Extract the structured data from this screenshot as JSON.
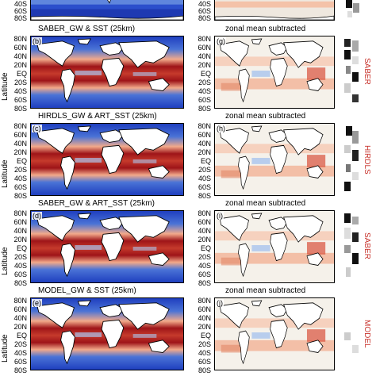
{
  "y_axis_label": "Latitude",
  "lat_labels_full": [
    "80N",
    "60N",
    "40N",
    "20N",
    "EQ",
    "20S",
    "40S",
    "60S",
    "80S"
  ],
  "lat_labels_top": [
    "40S",
    "60S",
    "80S"
  ],
  "right_column_title": "zonal mean subtracted",
  "rows": [
    {
      "left_title": "SABER_GW & SST (25km)",
      "left_panel": "(b)",
      "right_panel": "(g)",
      "side_label": "SABER"
    },
    {
      "left_title": "HIRDLS_GW & ART_SST (25km)",
      "left_panel": "(c)",
      "right_panel": "(h)",
      "side_label": "HIRDLS"
    },
    {
      "left_title": "SABER_GW & ART_SST (25km)",
      "left_panel": "(d)",
      "right_panel": "(i)",
      "side_label": "SABER"
    },
    {
      "left_title": "MODEL_GW & SST (25km)",
      "left_panel": "(e)",
      "right_panel": "(j)",
      "side_label": "MODEL"
    }
  ],
  "colors": {
    "deep_blue": "#1f3fbf",
    "light_blue": "#a9c4ee",
    "white": "#f5f1ea",
    "light_red": "#f2a98a",
    "dark_red": "#9e1418",
    "side_label_red": "#c8332c"
  }
}
